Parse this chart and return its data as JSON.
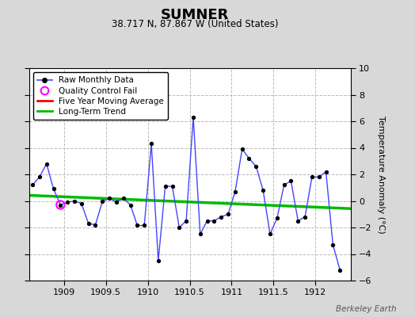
{
  "title": "SUMNER",
  "subtitle": "38.717 N, 87.867 W (United States)",
  "credit": "Berkeley Earth",
  "ylabel_right": "Temperature Anomaly (°C)",
  "ylim": [
    -6,
    10
  ],
  "xlim": [
    1908.5833,
    1912.42
  ],
  "xticks": [
    1909,
    1909.5,
    1910,
    1910.5,
    1911,
    1911.5,
    1912
  ],
  "yticks": [
    -6,
    -4,
    -2,
    0,
    2,
    4,
    6,
    8,
    10
  ],
  "bg_color": "#d8d8d8",
  "plot_bg_color": "#ffffff",
  "raw_color": "#4444ff",
  "raw_marker_color": "#000000",
  "qc_fail_color": "#ff00ff",
  "moving_avg_color": "#ff0000",
  "trend_color": "#00bb00",
  "raw_x": [
    1908.625,
    1908.708,
    1908.792,
    1908.875,
    1908.958,
    1909.042,
    1909.125,
    1909.208,
    1909.292,
    1909.375,
    1909.458,
    1909.542,
    1909.625,
    1909.708,
    1909.792,
    1909.875,
    1909.958,
    1910.042,
    1910.125,
    1910.208,
    1910.292,
    1910.375,
    1910.458,
    1910.542,
    1910.625,
    1910.708,
    1910.792,
    1910.875,
    1910.958,
    1911.042,
    1911.125,
    1911.208,
    1911.292,
    1911.375,
    1911.458,
    1911.542,
    1911.625,
    1911.708,
    1911.792,
    1911.875,
    1911.958,
    1912.042,
    1912.125,
    1912.208,
    1912.292
  ],
  "raw_y": [
    1.2,
    1.8,
    2.8,
    0.9,
    -0.3,
    -0.1,
    0.0,
    -0.2,
    -1.7,
    -1.8,
    -0.05,
    0.2,
    -0.1,
    0.2,
    -0.3,
    -1.85,
    -1.85,
    4.3,
    -4.5,
    1.1,
    1.1,
    -2.0,
    -1.5,
    6.3,
    -2.5,
    -1.5,
    -1.5,
    -1.2,
    -1.0,
    0.7,
    3.9,
    3.2,
    2.6,
    0.8,
    -2.5,
    -1.3,
    1.2,
    1.5,
    -1.5,
    -1.2,
    1.8,
    1.8,
    2.2,
    -3.3,
    -5.2
  ],
  "qc_fail_x": [
    1908.958
  ],
  "qc_fail_y": [
    -0.3
  ],
  "trend_x": [
    1908.5833,
    1912.42
  ],
  "trend_y": [
    0.42,
    -0.58
  ],
  "legend_labels": [
    "Raw Monthly Data",
    "Quality Control Fail",
    "Five Year Moving Average",
    "Long-Term Trend"
  ]
}
